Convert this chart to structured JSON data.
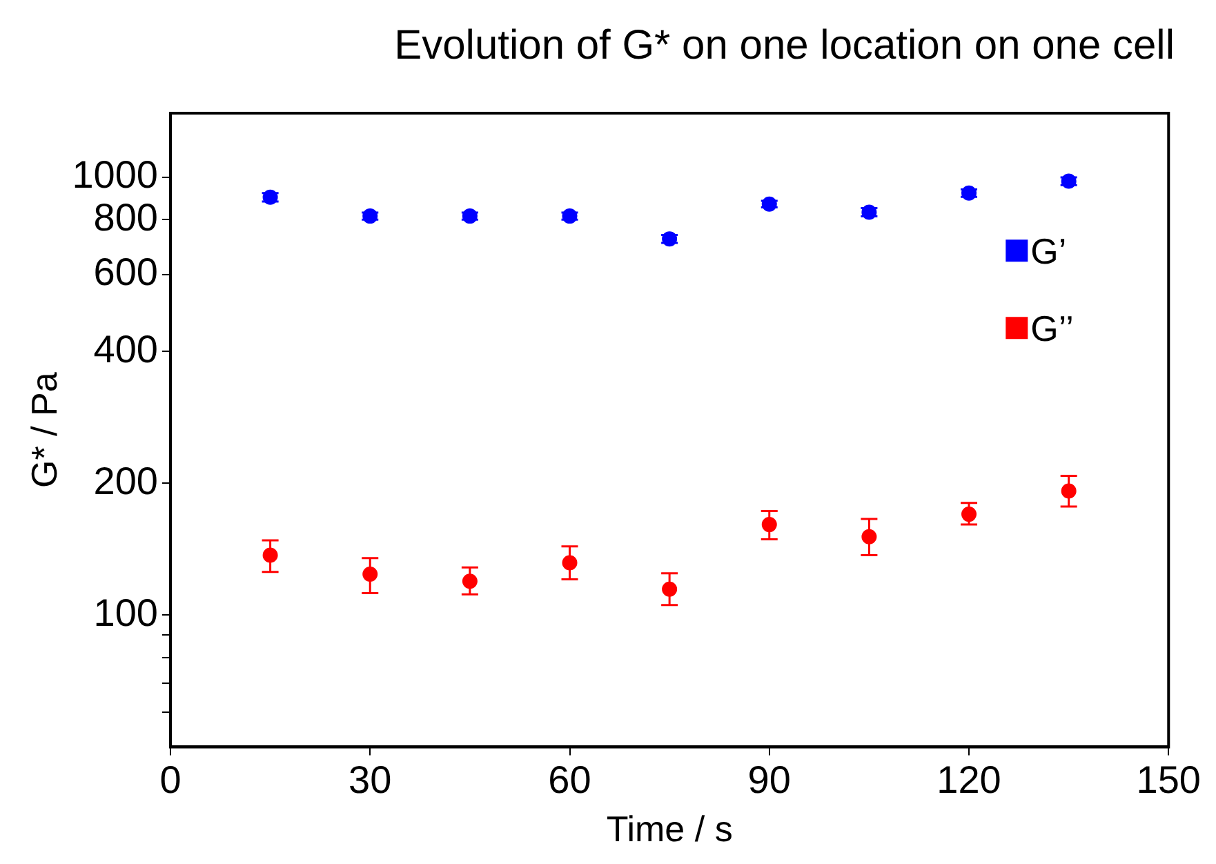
{
  "chart_data": {
    "type": "scatter",
    "title": "Evolution of G* on one location on one cell",
    "xlabel": "Time / s",
    "ylabel": "G* / Pa",
    "x": [
      15,
      30,
      45,
      60,
      75,
      90,
      105,
      120,
      135
    ],
    "series": [
      {
        "name": "G’",
        "color": "#0000ff",
        "values": [
          900,
          815,
          815,
          815,
          723,
          868,
          832,
          920,
          979
        ],
        "errors": [
          20,
          15,
          15,
          15,
          15,
          15,
          18,
          18,
          20
        ]
      },
      {
        "name": "G’’",
        "color": "#ff0000",
        "values": [
          137,
          124,
          119.5,
          131.7,
          114.6,
          161,
          151,
          170,
          192
        ],
        "errors": [
          [
            125.5,
            148.2
          ],
          [
            112.3,
            134.9
          ],
          [
            111.5,
            128.5
          ],
          [
            120.7,
            143.6
          ],
          [
            105.4,
            124.6
          ],
          [
            149,
            172.9
          ],
          [
            137,
            165.8
          ],
          [
            161,
            180.4
          ],
          [
            177,
            208
          ]
        ]
      }
    ],
    "xlim": [
      0,
      150
    ],
    "xticks": [
      0,
      30,
      60,
      90,
      120,
      150
    ],
    "ylim": [
      50,
      1400
    ],
    "yticks": [
      {
        "value": 60,
        "label": null
      },
      {
        "value": 70,
        "label": null
      },
      {
        "value": 80,
        "label": null
      },
      {
        "value": 90,
        "label": null
      },
      100,
      200,
      400,
      600,
      800,
      1000
    ],
    "log": true,
    "grid": false,
    "legend": "right",
    "marker": "circle"
  }
}
